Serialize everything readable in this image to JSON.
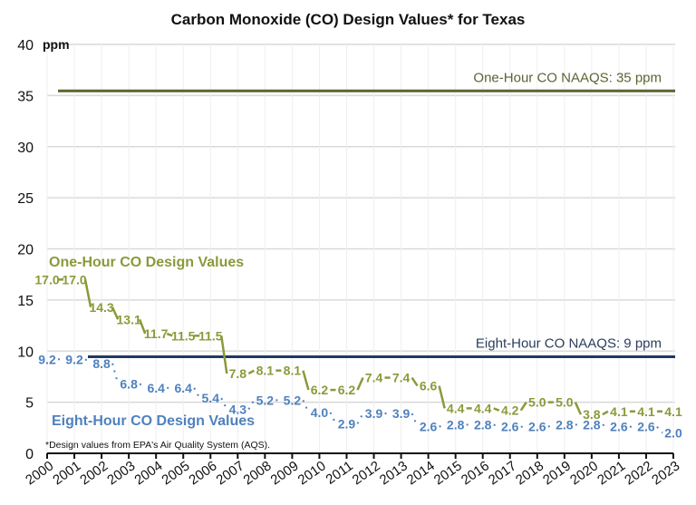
{
  "chart_data": {
    "type": "line",
    "title": "Carbon Monoxide (CO) Design Values* for Texas",
    "ylabel": "ppm",
    "xlabel": "",
    "ylim": [
      0,
      40
    ],
    "yticks": [
      0,
      5,
      10,
      15,
      20,
      25,
      30,
      35,
      40
    ],
    "grid": true,
    "x": [
      "2000",
      "2001",
      "2002",
      "2003",
      "2004",
      "2005",
      "2006",
      "2007",
      "2008",
      "2009",
      "2010",
      "2011",
      "2012",
      "2013",
      "2014",
      "2015",
      "2016",
      "2017",
      "2018",
      "2019",
      "2020",
      "2021",
      "2022",
      "2023"
    ],
    "series": [
      {
        "name": "One-Hour CO Design Values",
        "color": "#8a9a3a",
        "values": [
          17.0,
          17.0,
          14.3,
          13.1,
          11.7,
          11.5,
          11.5,
          7.8,
          8.1,
          8.1,
          6.2,
          6.2,
          7.4,
          7.4,
          6.6,
          4.4,
          4.4,
          4.2,
          5.0,
          5.0,
          3.8,
          4.1,
          4.1,
          4.1
        ]
      },
      {
        "name": "Eight-Hour CO Design Values",
        "color": "#4f81bd",
        "values": [
          9.2,
          9.2,
          8.8,
          6.8,
          6.4,
          6.4,
          5.4,
          4.3,
          5.2,
          5.2,
          4.0,
          2.9,
          3.9,
          3.9,
          2.6,
          2.8,
          2.8,
          2.6,
          2.6,
          2.8,
          2.8,
          2.6,
          2.6,
          2.0
        ]
      }
    ],
    "reference_lines": [
      {
        "name": "One-Hour CO NAAQS",
        "label": "One-Hour CO NAAQS: 35 ppm",
        "value": 35,
        "color": "#5a6431"
      },
      {
        "name": "Eight-Hour CO NAAQS",
        "label": "Eight-Hour CO NAAQS: 9 ppm",
        "value": 9,
        "color": "#1f3a5f"
      }
    ],
    "annotations": {
      "footnote": "*Design values from EPA's Air Quality System (AQS)."
    }
  }
}
